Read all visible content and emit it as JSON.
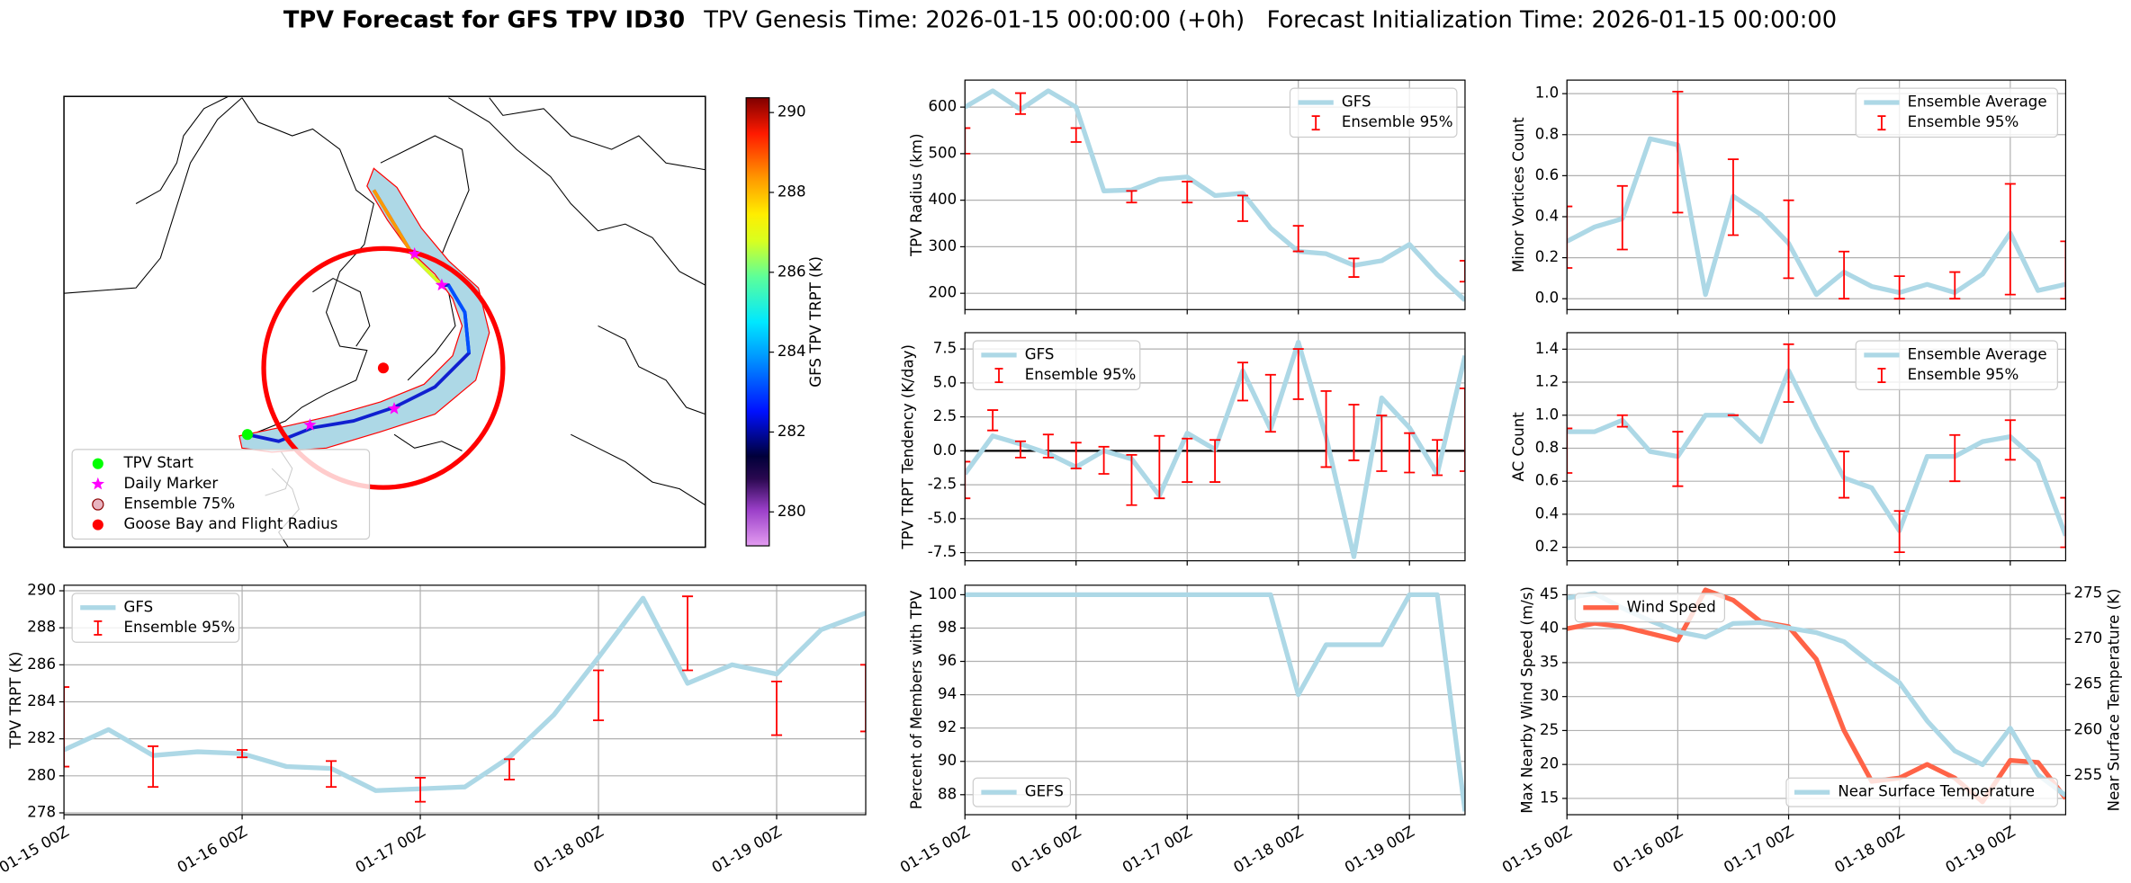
{
  "title": "TPV Forecast for GFS TPV ID30",
  "subtitle": "TPV Genesis Time: 2026-01-15 00:00:00 (+0h)   Forecast Initialization Time: 2026-01-15 00:00:00",
  "chart_data": [
    {
      "type": "map",
      "colorbar_label": "GFS TPV TRPT (K)",
      "clim": [
        279.15,
        290.37
      ],
      "cticks": [
        280,
        282,
        284,
        286,
        288,
        290
      ],
      "legend_loc": "lower left",
      "legend": [
        {
          "name": "TPV Start",
          "color": "#00ff00",
          "marker": "circle"
        },
        {
          "name": "Daily Marker",
          "color": "#ff00ff",
          "marker": "star"
        },
        {
          "name": "Ensemble 75%",
          "color": "#e8b4c0",
          "edgecolor": "#8b0000",
          "marker": "circle"
        },
        {
          "name": "Goose Bay and Flight Radius",
          "color": "#ff0000",
          "marker": "circle"
        }
      ]
    },
    {
      "type": "line",
      "ylabel": "TPV Radius (km)",
      "ylim": [
        165,
        658
      ],
      "yticks": [
        200,
        300,
        400,
        500,
        600
      ],
      "grid": true,
      "legend": "upper right",
      "show_xticklabels": false,
      "x": [
        "01-15 00Z",
        "01-15 06Z",
        "01-15 12Z",
        "01-15 18Z",
        "01-16 00Z",
        "01-16 06Z",
        "01-16 12Z",
        "01-16 18Z",
        "01-17 00Z",
        "01-17 06Z",
        "01-17 12Z",
        "01-17 18Z",
        "01-18 00Z",
        "01-18 06Z",
        "01-18 12Z",
        "01-18 18Z",
        "01-19 00Z",
        "01-19 06Z",
        "01-19 12Z"
      ],
      "xlim": [
        "01-15 00Z",
        "01-19 12Z"
      ],
      "xticks": [
        "01-15 00Z",
        "01-16 00Z",
        "01-17 00Z",
        "01-18 00Z",
        "01-19 00Z"
      ],
      "series": [
        {
          "name": "GFS",
          "color": "#add8e6",
          "values": [
            600,
            635,
            595,
            635,
            600,
            420,
            422,
            445,
            450,
            410,
            415,
            340,
            290,
            285,
            260,
            270,
            305,
            240,
            185
          ]
        },
        {
          "name": "Ensemble 95%",
          "color": "#ff0000",
          "kind": "errorbar",
          "x": [
            "01-15 00Z",
            "01-15 12Z",
            "01-16 00Z",
            "01-16 12Z",
            "01-17 00Z",
            "01-17 12Z",
            "01-18 00Z",
            "01-18 12Z",
            "01-19 00Z",
            "01-19 12Z"
          ],
          "low": [
            500,
            585,
            525,
            395,
            395,
            355,
            290,
            235,
            null,
            225
          ],
          "high": [
            555,
            630,
            555,
            420,
            440,
            410,
            345,
            275,
            null,
            270
          ]
        }
      ]
    },
    {
      "type": "line",
      "ylabel": "Minor Vortices Count",
      "ylim": [
        -0.053,
        1.066
      ],
      "yticks": [
        {
          "value": 0,
          "label": "0.0"
        },
        0.2,
        0.4,
        0.6,
        0.8,
        {
          "value": 1,
          "label": "1.0"
        }
      ],
      "grid": true,
      "legend": "upper right",
      "show_xticklabels": false,
      "x": [
        "01-15 00Z",
        "01-15 06Z",
        "01-15 12Z",
        "01-15 18Z",
        "01-16 00Z",
        "01-16 06Z",
        "01-16 12Z",
        "01-16 18Z",
        "01-17 00Z",
        "01-17 06Z",
        "01-17 12Z",
        "01-17 18Z",
        "01-18 00Z",
        "01-18 06Z",
        "01-18 12Z",
        "01-18 18Z",
        "01-19 00Z",
        "01-19 06Z",
        "01-19 12Z"
      ],
      "xlim": [
        "01-15 00Z",
        "01-19 12Z"
      ],
      "xticks": [
        "01-15 00Z",
        "01-16 00Z",
        "01-17 00Z",
        "01-18 00Z",
        "01-19 00Z"
      ],
      "series": [
        {
          "name": "Ensemble Average",
          "color": "#add8e6",
          "values": [
            0.28,
            0.35,
            0.39,
            0.78,
            0.75,
            0.02,
            0.5,
            0.41,
            0.27,
            0.02,
            0.13,
            0.06,
            0.03,
            0.07,
            0.03,
            0.12,
            0.32,
            0.04,
            0.07
          ]
        },
        {
          "name": "Ensemble 95%",
          "color": "#ff0000",
          "kind": "errorbar",
          "x": [
            "01-15 00Z",
            "01-15 12Z",
            "01-16 00Z",
            "01-16 12Z",
            "01-17 00Z",
            "01-17 12Z",
            "01-18 00Z",
            "01-18 12Z",
            "01-19 00Z",
            "01-19 12Z"
          ],
          "low": [
            0.15,
            0.24,
            0.42,
            0.31,
            0.1,
            0,
            0,
            0,
            0.02,
            0
          ],
          "high": [
            0.45,
            0.55,
            1.01,
            0.68,
            0.48,
            0.23,
            0.11,
            0.13,
            0.56,
            0.28
          ]
        }
      ]
    },
    {
      "type": "line",
      "ylabel": "TPV TRPT Tendency (K/day)",
      "ylim": [
        -8.1,
        8.7
      ],
      "yticks": [
        -7.5,
        {
          "value": -5,
          "label": "-5.0"
        },
        -2.5,
        {
          "value": 0,
          "label": "0.0"
        },
        2.5,
        {
          "value": 5,
          "label": "5.0"
        },
        7.5
      ],
      "grid": true,
      "legend": "upper left",
      "show_xticklabels": false,
      "hline": 0,
      "x": [
        "01-15 00Z",
        "01-15 06Z",
        "01-15 12Z",
        "01-15 18Z",
        "01-16 00Z",
        "01-16 06Z",
        "01-16 12Z",
        "01-16 18Z",
        "01-17 00Z",
        "01-17 06Z",
        "01-17 12Z",
        "01-17 18Z",
        "01-18 00Z",
        "01-18 06Z",
        "01-18 12Z",
        "01-18 18Z",
        "01-19 00Z",
        "01-19 06Z",
        "01-19 12Z"
      ],
      "xlim": [
        "01-15 00Z",
        "01-19 12Z"
      ],
      "xticks": [
        "01-15 00Z",
        "01-16 00Z",
        "01-17 00Z",
        "01-18 00Z",
        "01-19 00Z"
      ],
      "series": [
        {
          "name": "GFS",
          "color": "#add8e6",
          "values": [
            -1.7,
            1.1,
            0.5,
            -0.2,
            -1.2,
            0,
            -0.6,
            -3.3,
            1.3,
            0.1,
            5.9,
            1.6,
            8.0,
            1.0,
            -7.8,
            3.9,
            1.7,
            -1.7,
            7.0
          ]
        },
        {
          "name": "Ensemble 95%",
          "color": "#ff0000",
          "kind": "errorbar",
          "x": [
            "01-15 00Z",
            "01-15 06Z",
            "01-15 12Z",
            "01-15 18Z",
            "01-16 00Z",
            "01-16 06Z",
            "01-16 12Z",
            "01-16 18Z",
            "01-17 00Z",
            "01-17 06Z",
            "01-17 12Z",
            "01-17 18Z",
            "01-18 00Z",
            "01-18 06Z",
            "01-18 12Z",
            "01-18 18Z",
            "01-19 00Z",
            "01-19 06Z",
            "01-19 12Z"
          ],
          "low": [
            -3.5,
            1.5,
            -0.5,
            -0.5,
            -1.3,
            -1.7,
            -4,
            -3.5,
            -2.3,
            -2.3,
            3.7,
            1.4,
            3.8,
            -1.2,
            -0.7,
            -1.5,
            -1.6,
            -1.8,
            -1.5
          ],
          "high": [
            -0.8,
            3,
            0.7,
            1.2,
            0.6,
            0.3,
            -0.3,
            1.1,
            0.9,
            0.8,
            6.5,
            5.6,
            7.5,
            4.4,
            3.4,
            2.6,
            1.3,
            0.8,
            4.6
          ]
        }
      ]
    },
    {
      "type": "line",
      "ylabel": "AC Count",
      "ylim": [
        0.118,
        1.5
      ],
      "yticks": [
        0.2,
        0.4,
        0.6,
        0.8,
        {
          "value": 1,
          "label": "1.0"
        },
        1.2,
        1.4
      ],
      "grid": true,
      "legend": "upper right",
      "show_xticklabels": false,
      "x": [
        "01-15 00Z",
        "01-15 06Z",
        "01-15 12Z",
        "01-15 18Z",
        "01-16 00Z",
        "01-16 06Z",
        "01-16 12Z",
        "01-16 18Z",
        "01-17 00Z",
        "01-17 06Z",
        "01-17 12Z",
        "01-17 18Z",
        "01-18 00Z",
        "01-18 06Z",
        "01-18 12Z",
        "01-18 18Z",
        "01-19 00Z",
        "01-19 06Z",
        "01-19 12Z"
      ],
      "xlim": [
        "01-15 00Z",
        "01-19 12Z"
      ],
      "xticks": [
        "01-15 00Z",
        "01-16 00Z",
        "01-17 00Z",
        "01-18 00Z",
        "01-19 00Z"
      ],
      "series": [
        {
          "name": "Ensemble Average",
          "color": "#add8e6",
          "values": [
            0.9,
            0.9,
            0.97,
            0.78,
            0.75,
            1.0,
            1.0,
            0.84,
            1.27,
            0.93,
            0.62,
            0.56,
            0.3,
            0.75,
            0.75,
            0.84,
            0.87,
            0.72,
            0.27
          ]
        },
        {
          "name": "Ensemble 95%",
          "color": "#ff0000",
          "kind": "errorbar",
          "x": [
            "01-15 00Z",
            "01-15 12Z",
            "01-16 00Z",
            "01-16 12Z",
            "01-17 00Z",
            "01-17 12Z",
            "01-18 00Z",
            "01-18 12Z",
            "01-19 00Z",
            "01-19 12Z"
          ],
          "low": [
            0.65,
            0.93,
            0.57,
            1.0,
            1.08,
            0.5,
            0.17,
            0.6,
            0.73,
            0.2
          ],
          "high": [
            0.92,
            1.0,
            0.9,
            1.0,
            1.43,
            0.78,
            0.42,
            0.88,
            0.97,
            0.5
          ]
        }
      ]
    },
    {
      "type": "line",
      "ylabel": "TPV TRPT (K)",
      "ylim": [
        277.9,
        290.3
      ],
      "yticks": [
        278,
        280,
        282,
        284,
        286,
        288,
        290
      ],
      "grid": true,
      "legend": "upper left",
      "x": [
        "01-15 00Z",
        "01-15 06Z",
        "01-15 12Z",
        "01-15 18Z",
        "01-16 00Z",
        "01-16 06Z",
        "01-16 12Z",
        "01-16 18Z",
        "01-17 00Z",
        "01-17 06Z",
        "01-17 12Z",
        "01-17 18Z",
        "01-18 00Z",
        "01-18 06Z",
        "01-18 12Z",
        "01-18 18Z",
        "01-19 00Z",
        "01-19 06Z",
        "01-19 12Z"
      ],
      "xlim": [
        "01-15 00Z",
        "01-19 12Z"
      ],
      "xticks": [
        "01-15 00Z",
        "01-16 00Z",
        "01-17 00Z",
        "01-18 00Z",
        "01-19 00Z"
      ],
      "series": [
        {
          "name": "GFS",
          "color": "#add8e6",
          "values": [
            281.4,
            282.5,
            281.1,
            281.3,
            281.2,
            280.5,
            280.4,
            279.2,
            279.3,
            279.4,
            281,
            283.3,
            286.4,
            289.6,
            285,
            286,
            285.5,
            287.9,
            288.8
          ]
        },
        {
          "name": "Ensemble 95%",
          "color": "#ff0000",
          "kind": "errorbar",
          "x": [
            "01-15 00Z",
            "01-15 12Z",
            "01-16 00Z",
            "01-16 12Z",
            "01-17 00Z",
            "01-17 12Z",
            "01-18 00Z",
            "01-18 12Z",
            "01-19 00Z",
            "01-19 12Z"
          ],
          "low": [
            280.5,
            279.4,
            281,
            279.4,
            278.6,
            279.8,
            283,
            285.7,
            282.2,
            282.4
          ],
          "high": [
            284.8,
            281.6,
            281.4,
            280.8,
            279.9,
            280.9,
            285.7,
            289.7,
            285.1,
            286
          ]
        }
      ]
    },
    {
      "type": "line",
      "ylabel": "Percent of Members with TPV",
      "ylim": [
        86.8,
        100.57
      ],
      "yticks": [
        88,
        90,
        92,
        94,
        96,
        98,
        100
      ],
      "grid": true,
      "legend": "lower left",
      "x": [
        "01-15 00Z",
        "01-15 06Z",
        "01-15 12Z",
        "01-15 18Z",
        "01-16 00Z",
        "01-16 06Z",
        "01-16 12Z",
        "01-16 18Z",
        "01-17 00Z",
        "01-17 06Z",
        "01-17 12Z",
        "01-17 18Z",
        "01-18 00Z",
        "01-18 06Z",
        "01-18 12Z",
        "01-18 18Z",
        "01-19 00Z",
        "01-19 06Z",
        "01-19 12Z"
      ],
      "xlim": [
        "01-15 00Z",
        "01-19 12Z"
      ],
      "xticks": [
        "01-15 00Z",
        "01-16 00Z",
        "01-17 00Z",
        "01-18 00Z",
        "01-19 00Z"
      ],
      "series": [
        {
          "name": "GEFS",
          "color": "#add8e6",
          "values": [
            100,
            100,
            100,
            100,
            100,
            100,
            100,
            100,
            100,
            100,
            100,
            100,
            94,
            97,
            97,
            97,
            100,
            100,
            87
          ]
        }
      ]
    },
    {
      "type": "line",
      "ylabel": "Max Nearby Wind Speed (m/s)",
      "ylabel_color": "#ff6347",
      "y2label": "Near Surface Temperature (K)",
      "y2label_color": "#4169e1",
      "ylim": [
        12.6,
        46.4
      ],
      "yticks": [
        15,
        20,
        25,
        30,
        35,
        40,
        45
      ],
      "y2lim": [
        250.7,
        275.9
      ],
      "y2ticks": [
        255,
        260,
        265,
        270,
        275
      ],
      "grid": true,
      "x": [
        "01-15 00Z",
        "01-15 06Z",
        "01-15 12Z",
        "01-15 18Z",
        "01-16 00Z",
        "01-16 06Z",
        "01-16 12Z",
        "01-16 18Z",
        "01-17 00Z",
        "01-17 06Z",
        "01-17 12Z",
        "01-17 18Z",
        "01-18 00Z",
        "01-18 06Z",
        "01-18 12Z",
        "01-18 18Z",
        "01-19 00Z",
        "01-19 06Z",
        "01-19 12Z"
      ],
      "xlim": [
        "01-15 00Z",
        "01-19 12Z"
      ],
      "xticks": [
        "01-15 00Z",
        "01-16 00Z",
        "01-17 00Z",
        "01-18 00Z",
        "01-19 00Z"
      ],
      "series": [
        {
          "name": "Wind Speed",
          "color": "#ff6347",
          "legend": "upper left",
          "values": [
            40,
            40.8,
            40.3,
            39.3,
            38.3,
            45.7,
            44.2,
            41,
            40.3,
            35.5,
            25,
            17.5,
            18,
            20,
            18,
            14.5,
            20.6,
            20.3,
            15
          ]
        },
        {
          "name": "Near Surface Temperature",
          "color": "#add8e6",
          "axis": "y2",
          "legend": "lower right",
          "values": [
            274.5,
            275,
            273.4,
            272,
            270.8,
            270.2,
            271.7,
            271.8,
            271.2,
            270.7,
            269.7,
            267.3,
            265.2,
            261,
            257.7,
            256.2,
            260.2,
            255.1,
            252.8
          ]
        }
      ]
    }
  ]
}
